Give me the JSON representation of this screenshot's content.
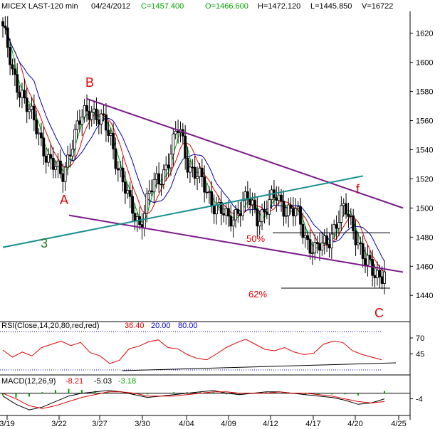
{
  "header": {
    "symbol": "MICEX LAST-120 min",
    "date": "04/24/2012",
    "close": "C=1457.400",
    "open": "O=1466.600",
    "high": "H=1472.120",
    "low": "L=1445.850",
    "volume": "V=16722"
  },
  "colors": {
    "background": "#ffffff",
    "frame": "#000000",
    "candle": "#000000",
    "ma_fast": "#00b000",
    "ma_mid": "#dd0000",
    "ma_slow": "#0000aa",
    "trend_purple": "#7b1a8a",
    "trend_teal": "#1a9090",
    "label_red": "#e00000",
    "label_green": "#1f7a1f",
    "rsi_line": "#dd0000",
    "macd_line": "#000000",
    "macd_signal": "#dd0000",
    "macd_hist": "#00a000"
  },
  "annotations": {
    "A": "A",
    "B": "B",
    "C": "C",
    "f": "f",
    "three": "3",
    "fib50": "50%",
    "fib62": "62%"
  },
  "chart_data": [
    {
      "type": "candlestick",
      "panel": "price",
      "ylim": [
        1423,
        1635
      ],
      "y_ticks": [
        1440,
        1460,
        1480,
        1500,
        1520,
        1540,
        1560,
        1580,
        1600,
        1620
      ],
      "x_ticks": [
        "3/19",
        "3/22",
        "3/27",
        "3/30",
        "4/04",
        "4/09",
        "4/12",
        "4/17",
        "4/20",
        "4/25"
      ],
      "close_path": [
        1625,
        1590,
        1580,
        1560,
        1545,
        1530,
        1520,
        1545,
        1560,
        1570,
        1560,
        1548,
        1525,
        1500,
        1490,
        1510,
        1520,
        1535,
        1555,
        1530,
        1520,
        1510,
        1500,
        1490,
        1500,
        1505,
        1495,
        1500,
        1508,
        1500,
        1495,
        1480,
        1470,
        1475,
        1490,
        1498,
        1485,
        1462,
        1455,
        1457
      ],
      "moving_averages": [
        "green",
        "red",
        "blue"
      ],
      "trendlines": [
        {
          "name": "upper-channel",
          "color": "purple",
          "from": [
            "3/25",
            1575
          ],
          "to": [
            "4/24",
            1500
          ]
        },
        {
          "name": "lower-channel",
          "color": "purple",
          "from": [
            "3/21",
            1495
          ],
          "to": [
            "4/24",
            1456
          ]
        },
        {
          "name": "rising-line",
          "color": "teal",
          "from": [
            "3/19",
            1473
          ],
          "to": [
            "4/21",
            1522
          ]
        }
      ],
      "levels": [
        {
          "label": "50%",
          "value": 1483
        },
        {
          "label": "62%",
          "value": 1445
        }
      ]
    },
    {
      "type": "line",
      "panel": "rsi",
      "title": "RSI(Close,14,20,80,red,red)",
      "values_text": [
        "36.40",
        "20.00",
        "80.00"
      ],
      "ylim": [
        20,
        80
      ],
      "y_ticks": [
        45,
        70
      ],
      "series": [
        {
          "values": [
            51,
            40,
            48,
            42,
            55,
            60,
            65,
            58,
            63,
            47,
            42,
            30,
            35,
            53,
            57,
            64,
            67,
            55,
            53,
            44,
            38,
            36,
            45,
            55,
            62,
            68,
            60,
            52,
            50,
            55,
            48,
            44,
            46,
            60,
            65,
            63,
            50,
            44,
            40,
            36
          ]
        }
      ]
    },
    {
      "type": "line",
      "panel": "macd",
      "title": "MACD(12,26,9)",
      "values_text": [
        "-8.21",
        "-5.03",
        "-3.18"
      ],
      "y_ticks": [
        -4
      ],
      "series": [
        {
          "values": [
            -2,
            -8,
            -12,
            -10,
            -6,
            -2,
            0,
            1,
            2,
            1,
            -1,
            -3,
            -2,
            -1,
            0,
            1,
            2,
            0,
            -1,
            0,
            1,
            1,
            0,
            -1,
            -2,
            -3,
            -5,
            -8,
            -7,
            -4
          ]
        },
        {
          "values": [
            0,
            -4,
            -9,
            -11,
            -9,
            -6,
            -3,
            -1,
            1,
            1,
            0,
            -2,
            -2,
            -2,
            -1,
            0,
            1,
            1,
            0,
            0,
            0,
            1,
            0,
            0,
            -1,
            -2,
            -4,
            -6,
            -7,
            -6
          ]
        }
      ]
    }
  ]
}
